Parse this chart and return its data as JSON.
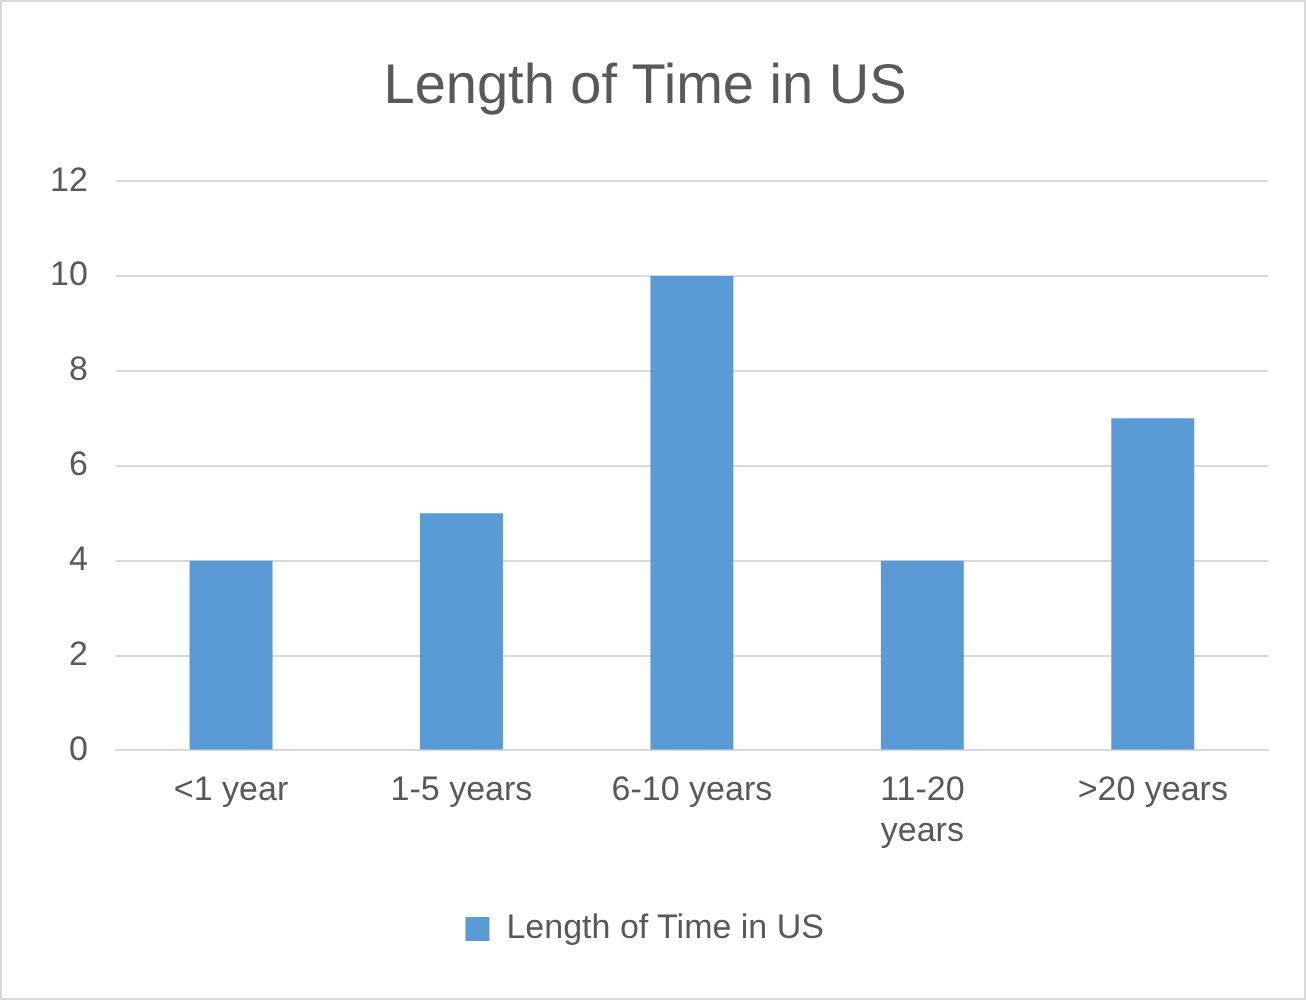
{
  "chart_data": {
    "type": "bar",
    "title": "Length of Time in US",
    "categories": [
      "<1 year",
      "1-5 years",
      "6-10 years",
      "11-20 years",
      ">20 years"
    ],
    "series": [
      {
        "name": "Length of Time in US",
        "color": "#5b9bd5",
        "values": [
          4,
          5,
          10,
          4,
          7
        ]
      }
    ],
    "ylim": [
      0,
      12
    ],
    "yticks": [
      0,
      2,
      4,
      6,
      8,
      10,
      12
    ],
    "grid": "y",
    "legend": "bottom"
  }
}
